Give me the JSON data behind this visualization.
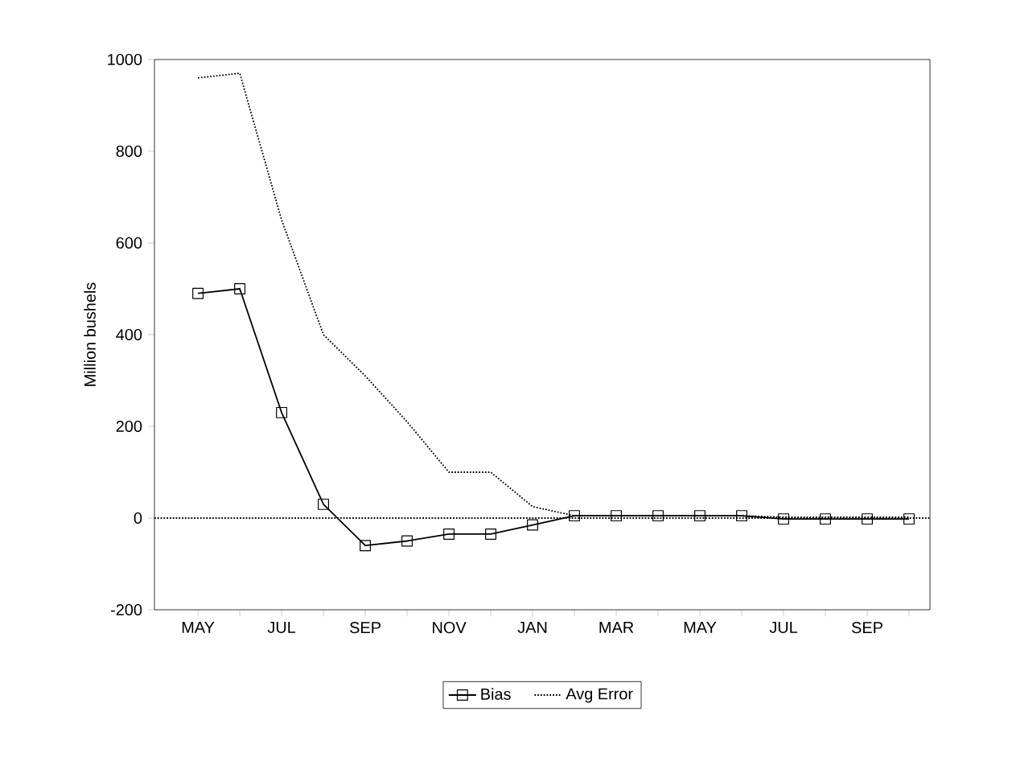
{
  "chart_data": {
    "type": "line",
    "ylabel": "Million bushels",
    "categories": [
      "MAY",
      null,
      "JUL",
      null,
      "SEP",
      null,
      "NOV",
      null,
      "JAN",
      null,
      "MAR",
      null,
      "MAY",
      null,
      "JUL",
      null,
      "SEP",
      null
    ],
    "series": [
      {
        "name": "Bias",
        "color": "#000000",
        "marker": "square",
        "line_style": "solid",
        "values": [
          490,
          500,
          230,
          30,
          -60,
          -50,
          -35,
          -35,
          -15,
          5,
          5,
          5,
          5,
          5,
          -2,
          -2,
          -2,
          -2
        ]
      },
      {
        "name": "Avg Error",
        "color": "#000000",
        "marker": "none",
        "line_style": "dotted",
        "values": [
          960,
          970,
          650,
          400,
          310,
          210,
          100,
          100,
          25,
          5,
          5,
          5,
          5,
          5,
          2,
          2,
          2,
          2
        ]
      }
    ],
    "ylim": [
      -200,
      1000
    ],
    "yticks": [
      -200,
      0,
      200,
      400,
      600,
      800,
      1000
    ],
    "ref_lines": [
      {
        "axis": "y",
        "value": 0,
        "color": "#000000",
        "line_style": "dotted"
      }
    ],
    "grid": false,
    "legend": "bottom"
  }
}
